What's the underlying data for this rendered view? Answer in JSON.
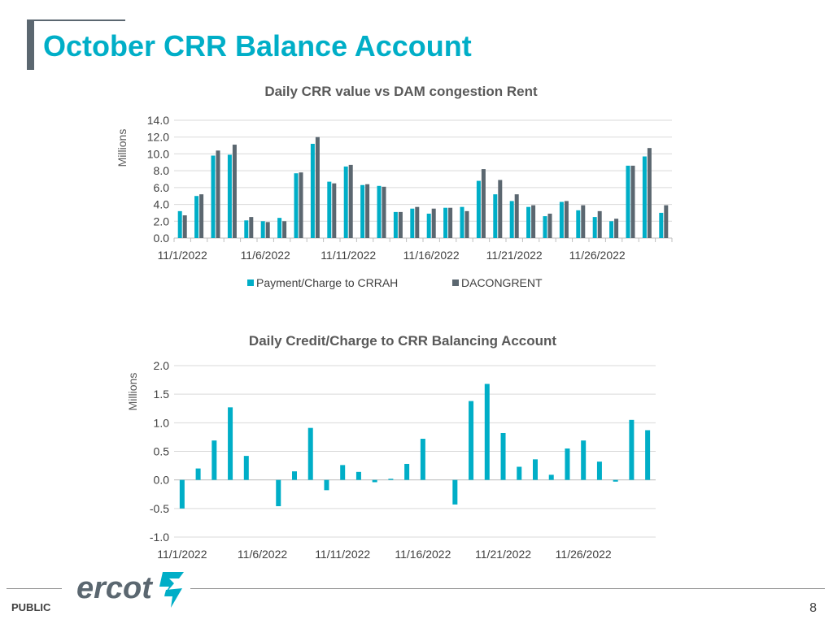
{
  "slide": {
    "title": "October CRR Balance Account",
    "footer_label": "PUBLIC",
    "page_number": "8",
    "logo_text": "ercot",
    "accent_color": "#00aec7",
    "secondary_color": "#5b6770"
  },
  "chart_data": [
    {
      "type": "bar",
      "title": "Daily CRR value vs DAM congestion Rent",
      "ylabel": "Millions",
      "ylim": [
        0,
        14
      ],
      "yticks": [
        "0.0",
        "2.0",
        "4.0",
        "6.0",
        "8.0",
        "10.0",
        "12.0",
        "14.0"
      ],
      "ytick_values": [
        0,
        2,
        4,
        6,
        8,
        10,
        12,
        14
      ],
      "categories": [
        "11/1/2022",
        "11/2/2022",
        "11/3/2022",
        "11/4/2022",
        "11/5/2022",
        "11/6/2022",
        "11/7/2022",
        "11/8/2022",
        "11/9/2022",
        "11/10/2022",
        "11/11/2022",
        "11/12/2022",
        "11/13/2022",
        "11/14/2022",
        "11/15/2022",
        "11/16/2022",
        "11/17/2022",
        "11/18/2022",
        "11/19/2022",
        "11/20/2022",
        "11/21/2022",
        "11/22/2022",
        "11/23/2022",
        "11/24/2022",
        "11/25/2022",
        "11/26/2022",
        "11/27/2022",
        "11/28/2022",
        "11/29/2022",
        "11/30/2022"
      ],
      "xtick_labels": [
        "11/1/2022",
        "11/6/2022",
        "11/11/2022",
        "11/16/2022",
        "11/21/2022",
        "11/26/2022"
      ],
      "grid": true,
      "legend_position": "bottom",
      "series": [
        {
          "name": "Payment/Charge to CRRAH",
          "color": "#00aec7",
          "values": [
            3.2,
            5.0,
            9.8,
            9.9,
            2.1,
            2.0,
            2.4,
            7.7,
            11.2,
            6.7,
            8.5,
            6.3,
            6.2,
            3.1,
            3.5,
            2.9,
            3.6,
            3.7,
            6.8,
            5.2,
            4.4,
            3.7,
            2.6,
            4.3,
            3.3,
            2.5,
            2.0,
            8.6,
            9.7,
            3.0
          ]
        },
        {
          "name": "DACONGRENT",
          "color": "#5b6770",
          "values": [
            2.7,
            5.2,
            10.4,
            11.1,
            2.5,
            1.9,
            2.0,
            7.8,
            12.0,
            6.5,
            8.7,
            6.4,
            6.1,
            3.1,
            3.7,
            3.5,
            3.6,
            3.2,
            8.2,
            6.9,
            5.2,
            3.9,
            2.9,
            4.4,
            3.9,
            3.2,
            2.3,
            8.6,
            10.7,
            3.9
          ]
        }
      ]
    },
    {
      "type": "bar",
      "title": "Daily Credit/Charge to CRR Balancing Account",
      "ylabel": "Millions",
      "ylim": [
        -1.0,
        2.0
      ],
      "yticks": [
        "-1.0",
        "-0.5",
        "0.0",
        "0.5",
        "1.0",
        "1.5",
        "2.0"
      ],
      "ytick_values": [
        -1.0,
        -0.5,
        0.0,
        0.5,
        1.0,
        1.5,
        2.0
      ],
      "categories": [
        "11/1/2022",
        "11/2/2022",
        "11/3/2022",
        "11/4/2022",
        "11/5/2022",
        "11/6/2022",
        "11/7/2022",
        "11/8/2022",
        "11/9/2022",
        "11/10/2022",
        "11/11/2022",
        "11/12/2022",
        "11/13/2022",
        "11/14/2022",
        "11/15/2022",
        "11/16/2022",
        "11/17/2022",
        "11/18/2022",
        "11/19/2022",
        "11/20/2022",
        "11/21/2022",
        "11/22/2022",
        "11/23/2022",
        "11/24/2022",
        "11/25/2022",
        "11/26/2022",
        "11/27/2022",
        "11/28/2022",
        "11/29/2022",
        "11/30/2022"
      ],
      "xtick_labels": [
        "11/1/2022",
        "11/6/2022",
        "11/11/2022",
        "11/16/2022",
        "11/21/2022",
        "11/26/2022"
      ],
      "grid": true,
      "series": [
        {
          "name": "",
          "color": "#00aec7",
          "values": [
            -0.5,
            0.2,
            0.69,
            1.27,
            0.42,
            0.0,
            -0.46,
            0.15,
            0.91,
            -0.18,
            0.26,
            0.14,
            -0.04,
            0.02,
            0.28,
            0.72,
            0.0,
            -0.43,
            1.38,
            1.68,
            0.82,
            0.23,
            0.36,
            0.09,
            0.55,
            0.69,
            0.32,
            -0.03,
            1.05,
            0.87
          ]
        }
      ]
    }
  ]
}
